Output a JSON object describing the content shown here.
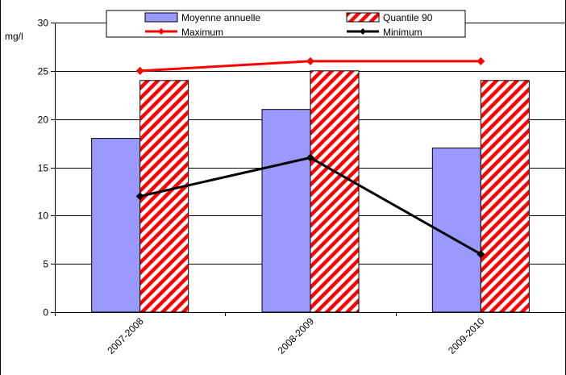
{
  "chart_data": {
    "type": "bar",
    "title": "",
    "xlabel": "",
    "ylabel": "mg/l",
    "categories": [
      "2007-2008",
      "2008-2009",
      "2009-2010"
    ],
    "ylim": [
      0,
      30
    ],
    "yticks": [
      0,
      5,
      10,
      15,
      20,
      25,
      30
    ],
    "grid": true,
    "legend_position": "top",
    "series": [
      {
        "name": "Moyenne annuelle",
        "kind": "bar",
        "style": "solid",
        "color": "#9999ff",
        "values": [
          18,
          21,
          17
        ]
      },
      {
        "name": "Quantile 90",
        "kind": "bar",
        "style": "hatched",
        "color": "#ff0000",
        "values": [
          24,
          25,
          24
        ]
      },
      {
        "name": "Maximum",
        "kind": "line",
        "marker": "diamond",
        "color": "#ff0000",
        "values": [
          25,
          26,
          26
        ]
      },
      {
        "name": "Minimum",
        "kind": "line",
        "marker": "diamond",
        "color": "#000000",
        "values": [
          12,
          16,
          6
        ]
      }
    ]
  }
}
